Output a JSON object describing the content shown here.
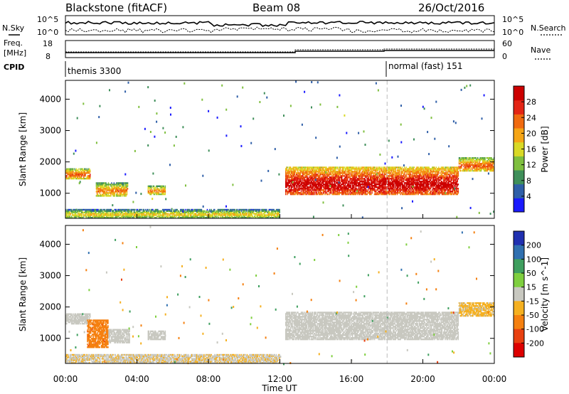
{
  "header": {
    "station": "Blackstone (fitACF)",
    "beam": "Beam 08",
    "date": "26/Oct/2016"
  },
  "top_panel": {
    "left_label": "N.Sky",
    "right_label": "N.Search",
    "left_ticks": [
      "10^5",
      "10^0"
    ],
    "right_ticks": [
      "10^5",
      "10^0"
    ]
  },
  "freq_panel": {
    "left_label_line1": "Freq.",
    "left_label_line2": "[MHz]",
    "right_label": "Nave",
    "left_ticks": [
      "18",
      "8"
    ],
    "right_ticks": [
      "60",
      "0"
    ]
  },
  "cpid": {
    "label": "CPID",
    "segments": [
      {
        "name": "themis 3300",
        "start_hour": 0
      },
      {
        "name": "normal (fast) 151",
        "start_hour": 18
      }
    ]
  },
  "chart_data": [
    {
      "type": "heatmap",
      "quantity": "Power",
      "ylabel": "Slant Range [km]",
      "xlabel": "",
      "colorbar_label": "Power [dB]",
      "colorbar_ticks": [
        "28",
        "24",
        "20",
        "16",
        "12",
        "8",
        "4"
      ],
      "colorbar_range": [
        0,
        30
      ],
      "colors": [
        "#1a1aff",
        "#2f5fa8",
        "#3f8f5a",
        "#7fbf3f",
        "#d9d926",
        "#f5a516",
        "#f06a10",
        "#e32515",
        "#cc0000"
      ],
      "yticks": [
        "1000",
        "2000",
        "3000",
        "4000"
      ],
      "ylim": [
        200,
        4600
      ],
      "xlim": [
        0,
        24
      ],
      "bands": [
        {
          "t0": 0.0,
          "t1": 1.4,
          "r0": 1450,
          "r1": 1800,
          "level": 14
        },
        {
          "t0": 1.7,
          "t1": 3.5,
          "r0": 900,
          "r1": 1350,
          "level": 12
        },
        {
          "t0": 4.6,
          "t1": 5.6,
          "r0": 950,
          "r1": 1250,
          "level": 12
        },
        {
          "t0": 12.3,
          "t1": 22.0,
          "r0": 950,
          "r1": 1850,
          "level": 20
        },
        {
          "t0": 22.0,
          "t1": 24.0,
          "r0": 1700,
          "r1": 2150,
          "level": 14
        },
        {
          "t0": 0.0,
          "t1": 12.0,
          "r0": 200,
          "r1": 500,
          "level": 8
        }
      ]
    },
    {
      "type": "heatmap",
      "quantity": "Velocity",
      "ylabel": "Slant Range [km]",
      "xlabel": "Time UT",
      "colorbar_label": "Velocity [m s^-1]",
      "colorbar_ticks": [
        "200",
        "100",
        "50",
        "15",
        "-15",
        "-50",
        "-100",
        "-200"
      ],
      "colorbar_range": [
        -250,
        250
      ],
      "colors": [
        "#2030b0",
        "#3070b0",
        "#3f9f5f",
        "#7fcf3f",
        "#c8c8c0",
        "#f5b020",
        "#f58010",
        "#e84010",
        "#dd0000"
      ],
      "yticks": [
        "1000",
        "2000",
        "3000",
        "4000"
      ],
      "xticks": [
        "00:00",
        "04:00",
        "08:00",
        "12:00",
        "16:00",
        "20:00",
        "00:00"
      ],
      "ylim": [
        200,
        4600
      ],
      "xlim": [
        0,
        24
      ],
      "bands": [
        {
          "t0": 0.0,
          "t1": 1.4,
          "r0": 1450,
          "r1": 1800,
          "level": 0
        },
        {
          "t0": 1.2,
          "t1": 2.4,
          "r0": 700,
          "r1": 1600,
          "level": -120
        },
        {
          "t0": 2.4,
          "t1": 3.6,
          "r0": 850,
          "r1": 1300,
          "level": 0
        },
        {
          "t0": 4.6,
          "t1": 5.6,
          "r0": 950,
          "r1": 1250,
          "level": 0
        },
        {
          "t0": 12.3,
          "t1": 22.0,
          "r0": 950,
          "r1": 1850,
          "level": 0
        },
        {
          "t0": 22.0,
          "t1": 24.0,
          "r0": 1700,
          "r1": 2150,
          "level": -40
        },
        {
          "t0": 0.0,
          "t1": 12.0,
          "r0": 200,
          "r1": 500,
          "level": -20
        }
      ]
    }
  ]
}
